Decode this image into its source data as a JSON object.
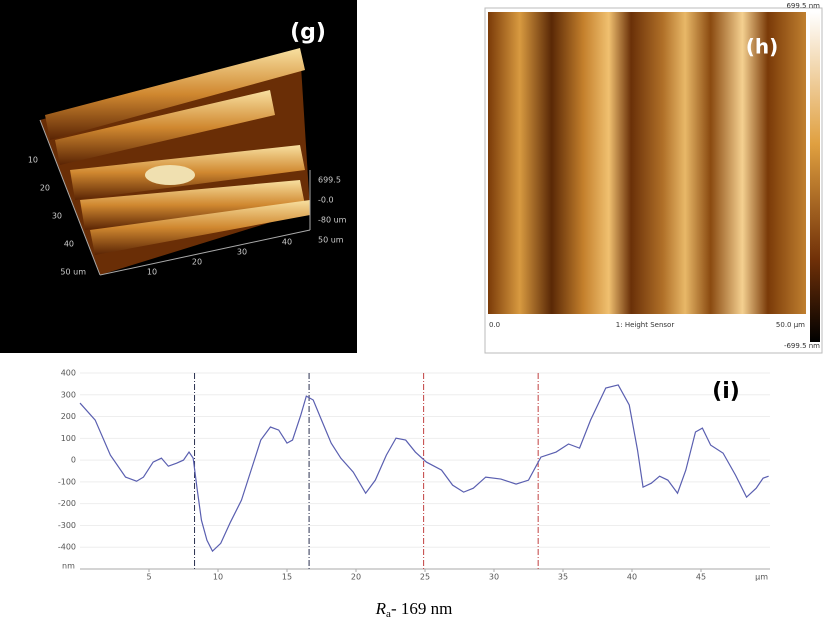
{
  "panel_g": {
    "label": "(g)",
    "axis_left": [
      "10",
      "20",
      "30",
      "40",
      "50 um"
    ],
    "axis_bottom": [
      "10",
      "20",
      "30",
      "40"
    ],
    "axis_right": [
      "699.5",
      "-0.0",
      "-80 um",
      "50 um"
    ]
  },
  "panel_h": {
    "label": "(h)",
    "top_right": "699.5 nm",
    "bottom_left": "0.0",
    "bottom_center": "1: Height Sensor",
    "bottom_right": "50.0 µm",
    "bar_bottom": "-699.5 nm"
  },
  "chart_data": {
    "type": "line",
    "label": "(i)",
    "x_label": "µm",
    "y_label": "nm",
    "color": "#5a5fb0",
    "x": [
      0,
      1.1,
      2.2,
      3.3,
      4.1,
      4.6,
      5.3,
      5.9,
      6.4,
      7.0,
      7.5,
      7.9,
      8.2,
      8.5,
      8.8,
      9.2,
      9.6,
      10.2,
      10.9,
      11.7,
      12.4,
      13.1,
      13.8,
      14.4,
      15.0,
      15.4,
      16.0,
      16.4,
      16.9,
      17.5,
      18.2,
      18.9,
      19.8,
      20.7,
      21.4,
      22.2,
      22.9,
      23.6,
      24.3,
      25.1,
      26.2,
      27.0,
      27.8,
      28.5,
      29.4,
      30.5,
      31.6,
      32.5,
      33.4,
      34.5,
      35.4,
      36.2,
      37.0,
      38.1,
      39.0,
      39.8,
      40.4,
      40.8,
      41.4,
      42.0,
      42.6,
      43.3,
      43.9,
      44.6,
      45.1,
      45.7,
      46.6,
      47.5,
      48.3,
      49.0,
      49.5,
      49.9
    ],
    "values": [
      262,
      184,
      23,
      -78,
      -97,
      -78,
      -9,
      9,
      -28,
      -14,
      0,
      37,
      9,
      -138,
      -276,
      -368,
      -418,
      -382,
      -285,
      -184,
      -46,
      92,
      152,
      138,
      78,
      92,
      207,
      294,
      276,
      184,
      78,
      9,
      -55,
      -152,
      -92,
      23,
      101,
      92,
      37,
      -9,
      -46,
      -115,
      -147,
      -129,
      -78,
      -87,
      -110,
      -92,
      14,
      37,
      74,
      55,
      184,
      331,
      345,
      253,
      46,
      -124,
      -106,
      -74,
      -92,
      -152,
      -46,
      129,
      147,
      69,
      32,
      -69,
      -170,
      -129,
      -83,
      -74
    ],
    "vlines": [
      {
        "x": 8.3,
        "color": "#2a3050"
      },
      {
        "x": 16.6,
        "color": "#2a3050"
      },
      {
        "x": 24.9,
        "color": "#c04040"
      },
      {
        "x": 33.2,
        "color": "#c04040"
      }
    ],
    "xlim": [
      0,
      50
    ],
    "ylim": [
      -500,
      400
    ],
    "xticks": [
      5,
      10,
      15,
      20,
      25,
      30,
      35,
      40,
      45
    ],
    "yticks": [
      400,
      300,
      200,
      100,
      0,
      -100,
      -200,
      -300,
      -400
    ]
  },
  "caption": {
    "symbol": "R",
    "subscript": "a",
    "text": "- 169 nm"
  }
}
